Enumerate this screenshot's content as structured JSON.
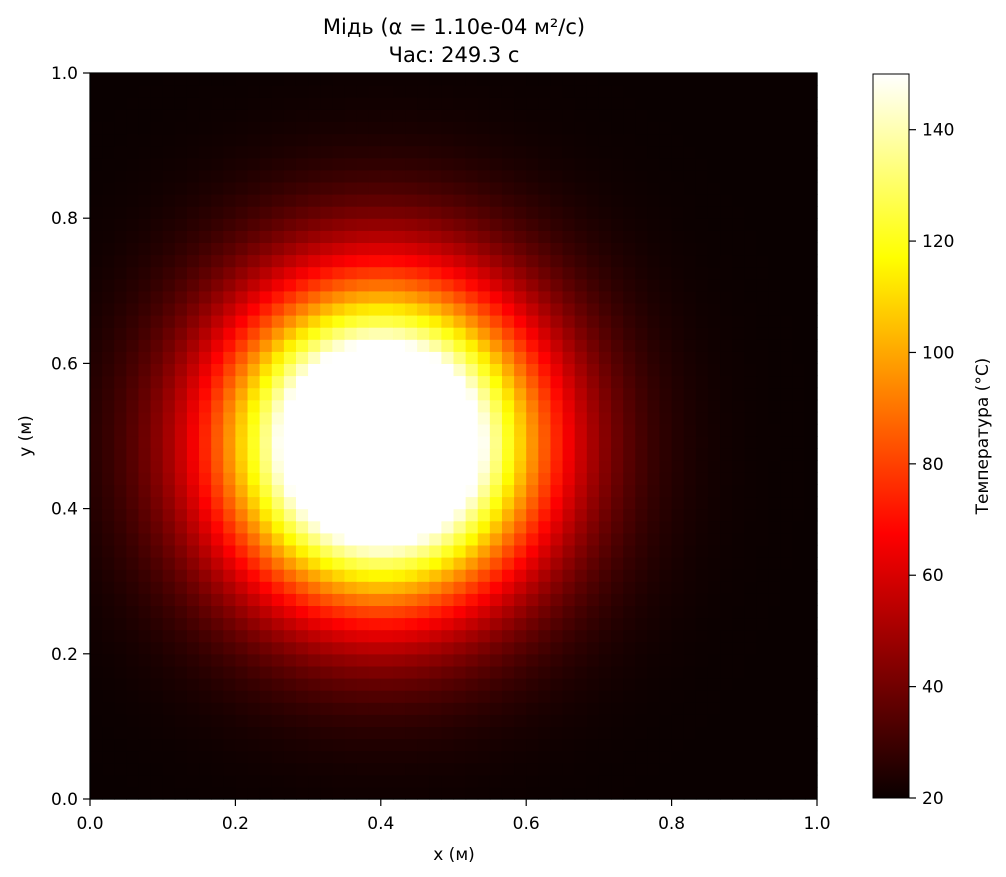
{
  "chart_data": {
    "type": "heatmap",
    "title": "Мідь (α = 1.10e-04 м²/с)",
    "subtitle": "Час: 249.3 с",
    "xlabel": "x (м)",
    "ylabel": "y (м)",
    "xlim": [
      0.0,
      1.0
    ],
    "ylim": [
      0.0,
      1.0
    ],
    "x_ticks": [
      "0.0",
      "0.2",
      "0.4",
      "0.6",
      "0.8",
      "1.0"
    ],
    "y_ticks": [
      "0.0",
      "0.2",
      "0.4",
      "0.6",
      "0.8",
      "1.0"
    ],
    "grid": false,
    "colormap": "hot",
    "colormap_stops": [
      {
        "t": 0.0,
        "color": "#0a0000"
      },
      {
        "t": 0.365,
        "color": "#ff0000"
      },
      {
        "t": 0.746,
        "color": "#ffff00"
      },
      {
        "t": 1.0,
        "color": "#ffffff"
      }
    ],
    "colorbar": {
      "label": "Температура (°C)",
      "range": [
        20,
        150
      ],
      "ticks": [
        "20",
        "40",
        "60",
        "80",
        "100",
        "120",
        "140"
      ]
    },
    "field": {
      "grid_resolution": 60,
      "background_temperature": 20,
      "peak_temperature": 150,
      "hot_spot_center": [
        0.4,
        0.49
      ],
      "hot_spot_sigma": 0.15,
      "peak_amplitude": 200
    }
  }
}
